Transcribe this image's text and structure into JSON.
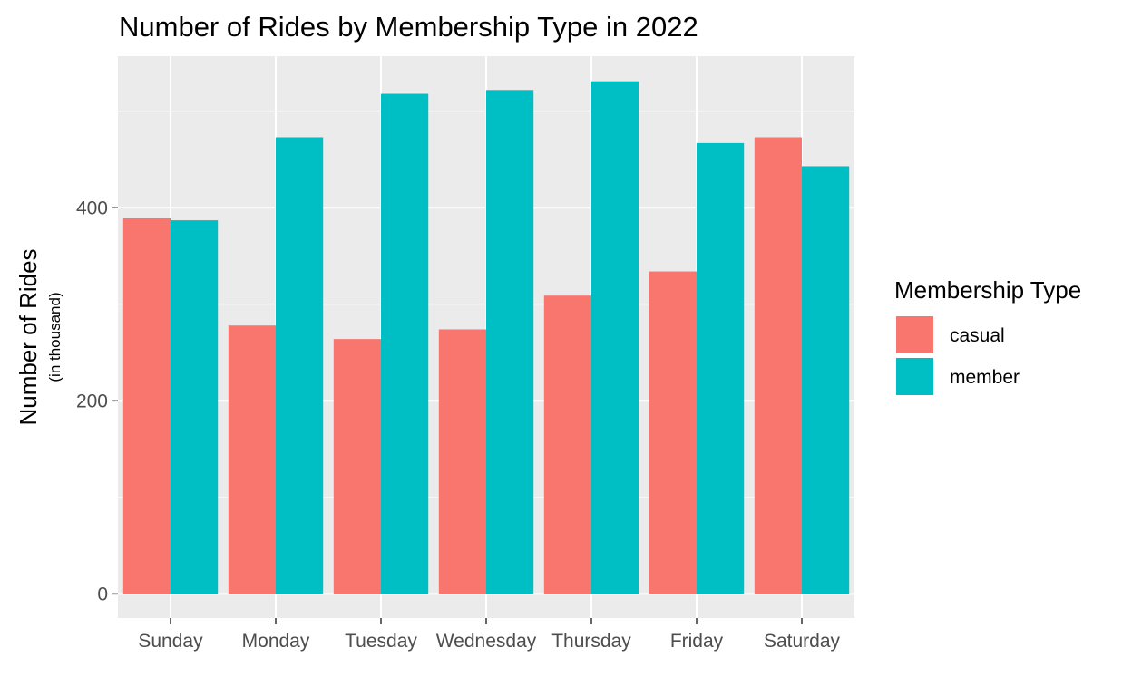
{
  "chart_data": {
    "type": "bar",
    "title": "Number of Rides by Membership Type in 2022",
    "xlabel": "",
    "ylabel": "Number of Rides",
    "ylabel_sub": "(in thousand)",
    "categories": [
      "Sunday",
      "Monday",
      "Tuesday",
      "Wednesday",
      "Thursday",
      "Friday",
      "Saturday"
    ],
    "series": [
      {
        "name": "casual",
        "color": "#F8766D",
        "values": [
          389,
          278,
          264,
          274,
          309,
          334,
          473
        ]
      },
      {
        "name": "member",
        "color": "#00BFC4",
        "values": [
          387,
          473,
          518,
          522,
          531,
          467,
          443
        ]
      }
    ],
    "ylim": [
      -25,
      557
    ],
    "yticks": [
      0,
      200,
      400
    ],
    "grid": true,
    "legend": {
      "title": "Membership Type",
      "position": "right"
    }
  }
}
